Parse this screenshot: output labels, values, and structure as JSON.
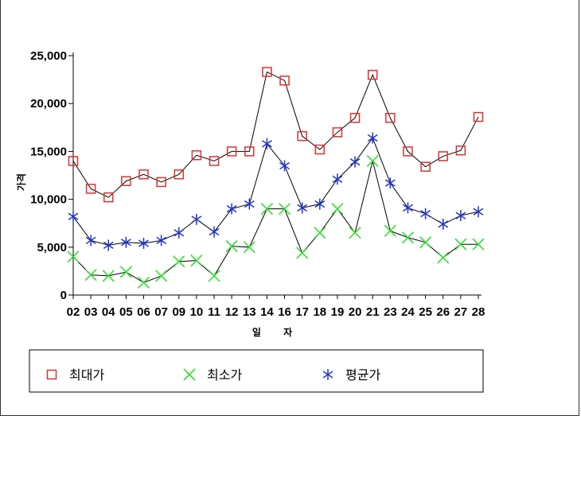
{
  "chart_data": {
    "type": "line",
    "categories": [
      "02",
      "03",
      "04",
      "05",
      "06",
      "07",
      "09",
      "10",
      "11",
      "12",
      "13",
      "14",
      "16",
      "17",
      "18",
      "19",
      "20",
      "21",
      "23",
      "24",
      "25",
      "26",
      "27",
      "28"
    ],
    "xlabel": "일 자",
    "ylabel": "가격",
    "ylim": [
      0,
      25000
    ],
    "yticks": [
      "0",
      "5,000",
      "10,000",
      "15,000",
      "20,000",
      "25,000"
    ],
    "ytick_values": [
      0,
      5000,
      10000,
      15000,
      20000,
      25000
    ],
    "grid": false,
    "legend_position": "bottom",
    "series": [
      {
        "name": "최대가",
        "marker": "square",
        "color": "#e03030",
        "values": [
          14000,
          11100,
          10200,
          11900,
          12600,
          11800,
          12600,
          14600,
          14000,
          15000,
          15000,
          23300,
          22400,
          16600,
          15200,
          17000,
          18500,
          23000,
          18500,
          15000,
          13400,
          14500,
          15100,
          18600
        ]
      },
      {
        "name": "최소가",
        "marker": "x",
        "color": "#33dd33",
        "values": [
          4000,
          2100,
          2000,
          2400,
          1300,
          2000,
          3500,
          3600,
          2000,
          5100,
          5000,
          9000,
          9000,
          4400,
          6500,
          9000,
          6500,
          14000,
          6700,
          6000,
          5500,
          3900,
          5300,
          5300
        ]
      },
      {
        "name": "평균가",
        "marker": "asterisk",
        "color": "#2233cc",
        "values": [
          8200,
          5700,
          5200,
          5500,
          5400,
          5700,
          6500,
          7900,
          6600,
          9000,
          9500,
          15800,
          13500,
          9100,
          9500,
          12100,
          13900,
          16400,
          11700,
          9100,
          8500,
          7400,
          8300,
          8700
        ]
      }
    ]
  }
}
